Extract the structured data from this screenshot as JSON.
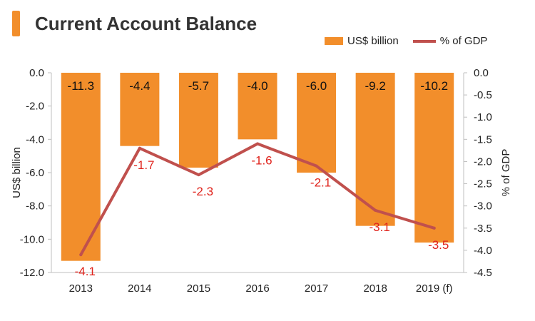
{
  "chart_data": {
    "title": "Current Account Balance",
    "type": "bar",
    "categories": [
      "2013",
      "2014",
      "2015",
      "2016",
      "2017",
      "2018",
      "2019 (f)"
    ],
    "series": [
      {
        "name": "US$ billion",
        "type": "bar",
        "axis": "left",
        "values": [
          -11.3,
          -4.4,
          -5.7,
          -4.0,
          -6.0,
          -9.2,
          -10.2
        ],
        "labels": [
          "-11.3",
          "-4.4",
          "-5.7",
          "-4.0",
          "-6.0",
          "-9.2",
          "-10.2"
        ],
        "color": "#f28e2b"
      },
      {
        "name": "% of GDP",
        "type": "line",
        "axis": "right",
        "values": [
          -4.1,
          -1.7,
          -2.3,
          -1.6,
          -2.1,
          -3.1,
          -3.5
        ],
        "labels": [
          "-4.1",
          "-1.7",
          "-2.3",
          "-1.6",
          "-2.1",
          "-3.1",
          "-3.5"
        ],
        "color": "#c0504d"
      }
    ],
    "ylabel": "US$ billion",
    "y2label": "% of GDP",
    "ylim": [
      -12,
      0
    ],
    "y2lim": [
      -4.5,
      0
    ],
    "yticks": [
      "0.0",
      "-2.0",
      "-4.0",
      "-6.0",
      "-8.0",
      "-10.0",
      "-12.0"
    ],
    "y2ticks": [
      "0.0",
      "-0.5",
      "-1.0",
      "-1.5",
      "-2.0",
      "-2.5",
      "-3.0",
      "-3.5",
      "-4.0",
      "-4.5"
    ],
    "legend": "top-right",
    "grid": false
  }
}
